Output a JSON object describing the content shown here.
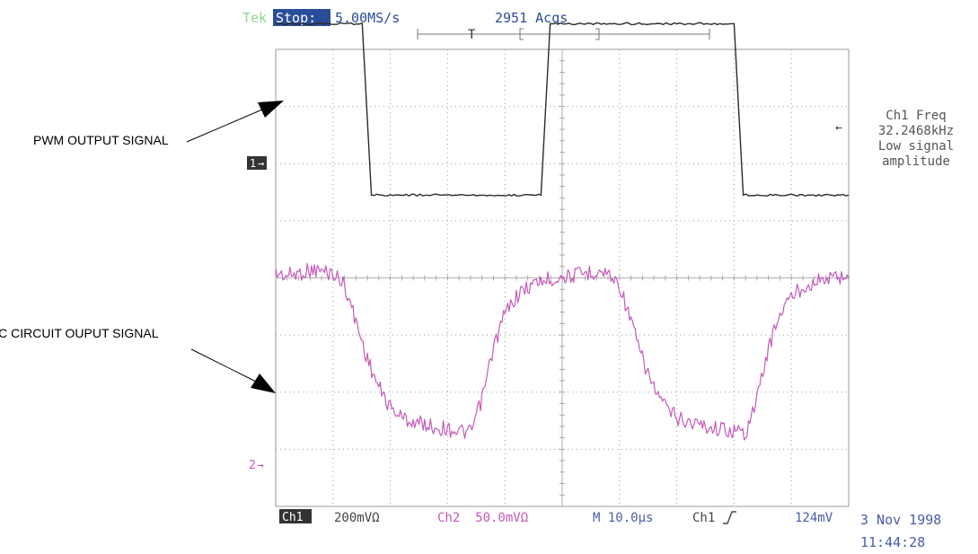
{
  "header": {
    "brand": "Tek",
    "run_state": "Stop:",
    "sample_rate": "5.00MS/s",
    "acquisitions": "2951 Acqs",
    "trigger_marker": "T"
  },
  "annotations": {
    "pwm_label": "PWM OUTPUT SIGNAL",
    "rc_label": "RC CIRCUIT OUPUT SIGNAL"
  },
  "measurement": {
    "title": "Ch1 Freq",
    "value": "32.2468kHz",
    "note_line1": "Low signal",
    "note_line2": "amplitude"
  },
  "channel_markers": {
    "ch1": "1",
    "ch2": "2"
  },
  "footer": {
    "ch1_label": "Ch1",
    "ch1_scale": "200mVΩ",
    "ch2_scale": "Ch2  50.0mVΩ",
    "timebase": "M 10.0µs",
    "trigger_source": "Ch1",
    "trigger_level": "124mV",
    "date": "3 Nov 1998",
    "time": "11:44:28"
  },
  "colors": {
    "ch1_trace": "#2b2b2b",
    "ch2_trace": "#c45ab8",
    "ch2_text": "#c45ab8",
    "header_brand": "#8fd88f",
    "header_badge": "#2a4d9a",
    "blue_text": "#4a5ea8",
    "grid": "#9a9a9a"
  },
  "chart_data": {
    "type": "line",
    "title": "",
    "xlabel": "",
    "ylabel": "",
    "x_unit": "µs",
    "y_unit": "V",
    "x_divisions": 10,
    "y_divisions": 8,
    "x_per_div": 10.0,
    "xlim": [
      0,
      100
    ],
    "grid": true,
    "series": [
      {
        "name": "Ch1",
        "y_per_div": 0.2,
        "description": "",
        "x": [
          0,
          15.1,
          16.7,
          46.3,
          47.9,
          80.0,
          81.6,
          100
        ],
        "y": [
          0.6,
          0.6,
          0.0,
          0.0,
          0.6,
          0.6,
          0.0,
          0.0
        ],
        "steps": [
          {
            "x0": 0.0,
            "x1": 15.1,
            "level": 0.6
          },
          {
            "x0": 16.7,
            "x1": 46.3,
            "level": 0.0
          },
          {
            "x0": 47.9,
            "x1": 80.0,
            "level": 0.6
          },
          {
            "x0": 81.6,
            "x1": 100.0,
            "level": 0.0
          }
        ]
      },
      {
        "name": "Ch2",
        "y_per_div": 0.05,
        "x": [
          0,
          2,
          4,
          6,
          8,
          10,
          12,
          14,
          16,
          18,
          20,
          22,
          24,
          26,
          28,
          30,
          32,
          34,
          36,
          38,
          40,
          42,
          44,
          46,
          48,
          50,
          52,
          54,
          56,
          58,
          60,
          62,
          64,
          66,
          68,
          70,
          72,
          74,
          76,
          78,
          80,
          82,
          84,
          86,
          88,
          90,
          92,
          94,
          96,
          98,
          100
        ],
        "y": [
          0.16,
          0.158,
          0.16,
          0.163,
          0.162,
          0.16,
          0.15,
          0.118,
          0.085,
          0.06,
          0.043,
          0.034,
          0.03,
          0.028,
          0.025,
          0.024,
          0.022,
          0.02,
          0.05,
          0.095,
          0.125,
          0.14,
          0.148,
          0.153,
          0.155,
          0.157,
          0.158,
          0.16,
          0.162,
          0.16,
          0.15,
          0.118,
          0.085,
          0.06,
          0.043,
          0.034,
          0.03,
          0.028,
          0.025,
          0.024,
          0.022,
          0.02,
          0.05,
          0.095,
          0.125,
          0.14,
          0.148,
          0.153,
          0.155,
          0.157,
          0.158
        ]
      }
    ]
  }
}
